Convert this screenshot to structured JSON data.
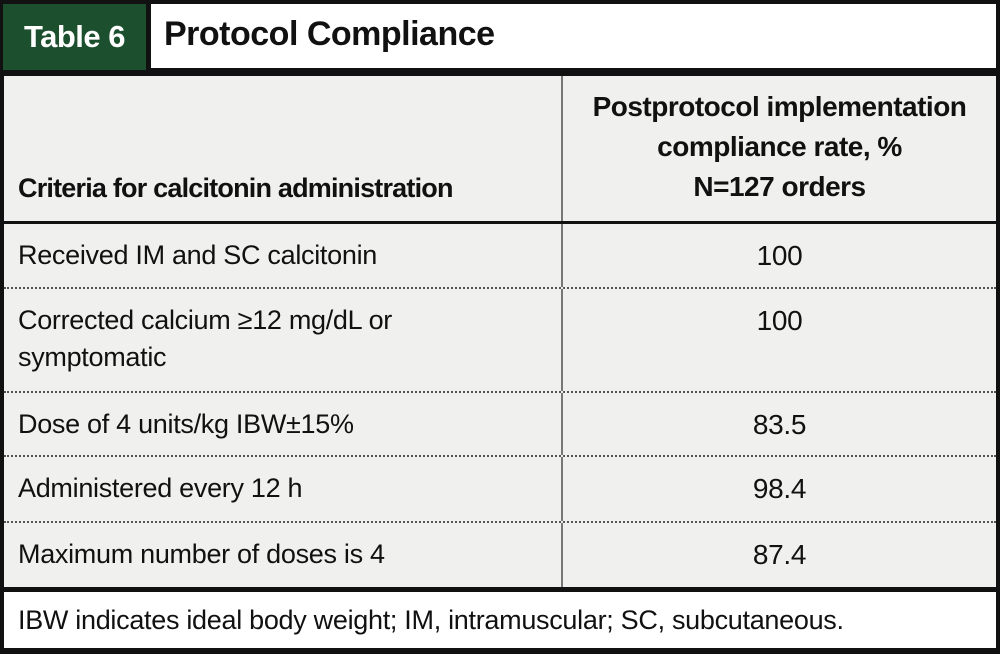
{
  "header": {
    "label": "Table 6",
    "title": "Protocol Compliance"
  },
  "table": {
    "col1_header": "Criteria for calcitonin administration",
    "col2_header_lines": [
      "Postprotocol implementation",
      "compliance rate, %",
      "N=127 orders"
    ],
    "rows": [
      {
        "criteria": "Received IM and SC calcitonin",
        "value": "100"
      },
      {
        "criteria": "Corrected calcium ≥12 mg/dL or symptomatic",
        "value": "100"
      },
      {
        "criteria": "Dose of 4 units/kg IBW±15%",
        "value": "83.5"
      },
      {
        "criteria": "Administered every 12 h",
        "value": "98.4"
      },
      {
        "criteria": "Maximum number of doses is 4",
        "value": "87.4"
      }
    ],
    "footnote": "IBW indicates ideal body weight; IM, intramuscular; SC, subcutaneous."
  },
  "colors": {
    "accent_green": "#1c4f2e",
    "row_background": "#f0f0ee",
    "border": "#111111",
    "column_divider": "#777777"
  },
  "chart_data": {
    "type": "table",
    "title": "Table 6. Protocol Compliance",
    "columns": [
      "Criteria for calcitonin administration",
      "Postprotocol implementation compliance rate, % N=127 orders"
    ],
    "rows": [
      [
        "Received IM and SC calcitonin",
        100
      ],
      [
        "Corrected calcium ≥12 mg/dL or symptomatic",
        100
      ],
      [
        "Dose of 4 units/kg IBW±15%",
        83.5
      ],
      [
        "Administered every 12 h",
        98.4
      ],
      [
        "Maximum number of doses is 4",
        87.4
      ]
    ],
    "footnote": "IBW indicates ideal body weight; IM, intramuscular; SC, subcutaneous."
  }
}
